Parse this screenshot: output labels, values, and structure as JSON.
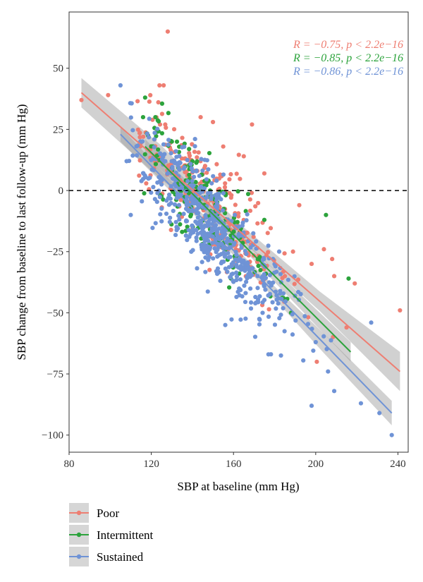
{
  "chart_data": {
    "type": "scatter",
    "xlabel": "SBP at baseline (mm Hg)",
    "ylabel": "SBP change from baseline to last follow-up (mm Hg)",
    "xlim": [
      80,
      245
    ],
    "ylim": [
      -107,
      73
    ],
    "x_ticks": [
      80,
      120,
      160,
      200,
      240
    ],
    "y_ticks": [
      50,
      25,
      0,
      -25,
      -50,
      -75,
      -100
    ],
    "x_tick_labels": [
      "80",
      "120",
      "160",
      "200",
      "240"
    ],
    "y_tick_labels": [
      "50",
      "25",
      "0",
      "−25",
      "−50",
      "−75",
      "−100"
    ],
    "reference_line": {
      "y": 0,
      "style": "dashed"
    },
    "panel_background": "#ffffff",
    "grid": false,
    "legend_position": "bottom-left",
    "series": [
      {
        "name": "Poor",
        "color": "#ee7e72",
        "stat_text": "R = −0.75, p < 2.2e−16",
        "fit": {
          "x": [
            86,
            241
          ],
          "y": [
            40,
            -74
          ]
        },
        "band_width": [
          6,
          7,
          3,
          4,
          8
        ],
        "points_sample": [
          [
            86,
            37
          ],
          [
            99,
            39
          ],
          [
            128,
            65
          ],
          [
            124,
            43
          ],
          [
            126,
            43
          ],
          [
            144,
            30
          ],
          [
            150,
            28
          ],
          [
            169,
            27
          ],
          [
            155,
            18
          ],
          [
            165,
            14
          ],
          [
            175,
            7
          ],
          [
            192,
            -6
          ],
          [
            204,
            -24
          ],
          [
            208,
            -28
          ],
          [
            209,
            -35
          ],
          [
            219,
            -38
          ],
          [
            241,
            -49
          ],
          [
            215,
            -56
          ],
          [
            198,
            -30
          ],
          [
            185,
            -35
          ]
        ],
        "cluster": {
          "x_mean": 150,
          "x_sd": 20,
          "y_sd": 11,
          "x_min": 110,
          "x_max": 215,
          "count": 260
        }
      },
      {
        "name": "Intermittent",
        "color": "#2ca33c",
        "stat_text": "R = −0.85, p < 2.2e−16",
        "fit": {
          "x": [
            117,
            217
          ],
          "y": [
            18,
            -66
          ]
        },
        "band_width": [
          3,
          3,
          2,
          3,
          4
        ],
        "points_sample": [
          [
            117,
            38
          ],
          [
            116,
            30
          ],
          [
            122,
            30
          ],
          [
            205,
            -10
          ],
          [
            216,
            -36
          ],
          [
            188,
            -50
          ],
          [
            175,
            -12
          ],
          [
            140,
            12
          ],
          [
            130,
            20
          ],
          [
            160,
            -22
          ]
        ],
        "cluster": {
          "x_mean": 145,
          "x_sd": 15,
          "y_sd": 10,
          "x_min": 115,
          "x_max": 200,
          "count": 170
        }
      },
      {
        "name": "Sustained",
        "color": "#6f93d6",
        "stat_text": "R = −0.86, p < 2.2e−16",
        "fit": {
          "x": [
            105,
            237
          ],
          "y": [
            23,
            -91
          ]
        },
        "band_width": [
          3,
          2,
          2,
          4,
          5
        ],
        "points_sample": [
          [
            105,
            43
          ],
          [
            110,
            -10
          ],
          [
            108,
            12
          ],
          [
            156,
            -55
          ],
          [
            177,
            -67
          ],
          [
            198,
            -88
          ],
          [
            206,
            -74
          ],
          [
            209,
            -82
          ],
          [
            222,
            -87
          ],
          [
            227,
            -54
          ],
          [
            231,
            -91
          ],
          [
            237,
            -100
          ],
          [
            200,
            -62
          ]
        ],
        "cluster": {
          "x_mean": 150,
          "x_sd": 19,
          "y_sd": 10,
          "x_min": 108,
          "x_max": 210,
          "count": 560
        }
      }
    ]
  }
}
